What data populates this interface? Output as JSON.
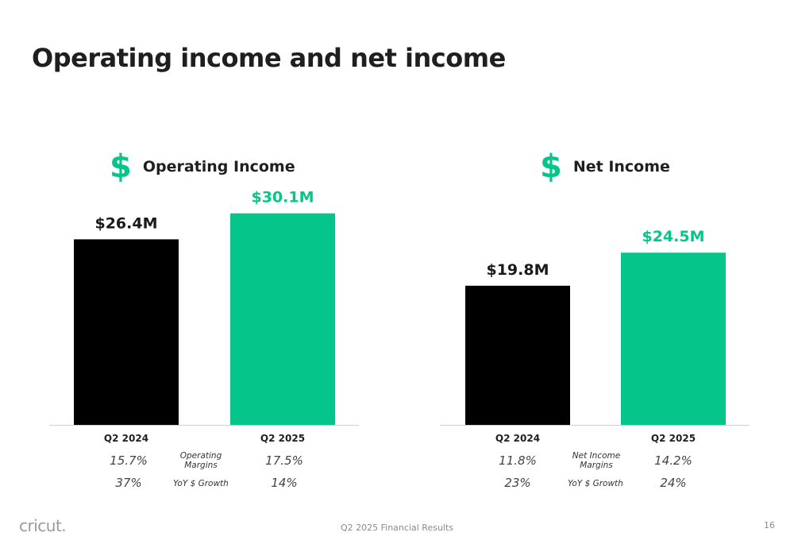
{
  "title": "Operating income and net income",
  "colors": {
    "black_bar": "#000000",
    "green_bar": "#06c58a",
    "axis": "#d0d0d0"
  },
  "chart_data": [
    {
      "type": "bar",
      "title": "Operating Income",
      "icon": "dollar-icon",
      "categories": [
        "Q2 2024",
        "Q2 2025"
      ],
      "values": [
        26.4,
        30.1
      ],
      "value_labels": [
        "$26.4M",
        "$30.1M"
      ],
      "unit": "$M",
      "ylim": [
        0,
        36.5
      ],
      "grid": false,
      "legend": "none",
      "metrics": [
        {
          "label": "Operating Margins",
          "values": [
            "15.7%",
            "17.5%"
          ]
        },
        {
          "label": "YoY $ Growth",
          "values": [
            "37%",
            "14%"
          ]
        }
      ]
    },
    {
      "type": "bar",
      "title": "Net Income",
      "icon": "dollar-icon",
      "categories": [
        "Q2 2024",
        "Q2 2025"
      ],
      "values": [
        19.8,
        24.5
      ],
      "value_labels": [
        "$19.8M",
        "$24.5M"
      ],
      "unit": "$M",
      "ylim": [
        0,
        36.5
      ],
      "grid": false,
      "legend": "none",
      "metrics": [
        {
          "label": "Net Income Margins",
          "values": [
            "11.8%",
            "14.2%"
          ]
        },
        {
          "label": "YoY $ Growth",
          "values": [
            "23%",
            "24%"
          ]
        }
      ]
    }
  ],
  "footer": {
    "logo": "cricut.",
    "center_text": "Q2 2025 Financial Results",
    "page_number": "16"
  }
}
